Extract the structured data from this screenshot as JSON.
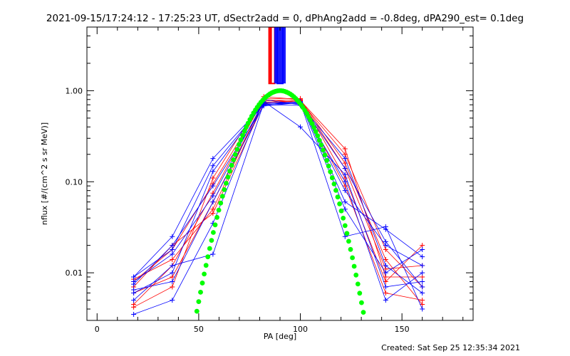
{
  "created": "Created: Sat Sep 25 12:35:34 2021",
  "chart_data": {
    "type": "line",
    "title": "2021-09-15/17:24:12 - 17:25:23 UT, dSectr2add = 0, dPhAng2add = -0.8deg, dPA290_est=  0.1deg",
    "xlabel": "PA [deg]",
    "ylabel": "nflux [#/(cm^2 s sr MeV)]",
    "xlim": [
      -5,
      185
    ],
    "ylim": [
      0.003,
      5
    ],
    "yscale": "log",
    "xticks": [
      0,
      50,
      100,
      150
    ],
    "xtick_labels": [
      "0",
      "50",
      "100",
      "150"
    ],
    "yticks": [
      0.01,
      0.1,
      1.0
    ],
    "ytick_labels": [
      "0.01",
      "0.10",
      "1.00"
    ],
    "grid": false,
    "colors": {
      "red": "#ff0000",
      "blue": "#0000ff",
      "green": "#00ff00",
      "black": "#000000"
    },
    "series": [
      {
        "color": "red",
        "x": [
          18,
          37,
          57,
          82,
          100,
          122,
          142,
          160
        ],
        "y": [
          0.0045,
          0.012,
          0.075,
          0.82,
          0.82,
          0.11,
          0.008,
          0.02
        ]
      },
      {
        "color": "red",
        "x": [
          18,
          37,
          57,
          82,
          100,
          122,
          142,
          160
        ],
        "y": [
          0.008,
          0.018,
          0.095,
          0.78,
          0.79,
          0.14,
          0.011,
          0.012
        ]
      },
      {
        "color": "red",
        "x": [
          18,
          37,
          57,
          82,
          100,
          122,
          142,
          160
        ],
        "y": [
          0.006,
          0.009,
          0.06,
          0.75,
          0.77,
          0.2,
          0.018,
          0.007
        ]
      },
      {
        "color": "red",
        "x": [
          18,
          37,
          57,
          82,
          100,
          122,
          142,
          160
        ],
        "y": [
          0.0085,
          0.014,
          0.05,
          0.8,
          0.74,
          0.09,
          0.006,
          0.005
        ]
      },
      {
        "color": "red",
        "x": [
          18,
          37,
          57,
          82,
          100,
          122,
          142,
          160
        ],
        "y": [
          0.0042,
          0.007,
          0.11,
          0.86,
          0.8,
          0.16,
          0.014,
          0.0045
        ]
      },
      {
        "color": "red",
        "x": [
          18,
          37,
          57,
          82,
          100,
          122,
          142,
          160
        ],
        "y": [
          0.007,
          0.02,
          0.045,
          0.72,
          0.78,
          0.23,
          0.009,
          0.009
        ]
      },
      {
        "color": "blue",
        "x": [
          18,
          37,
          57,
          82,
          100,
          122,
          142,
          160
        ],
        "y": [
          0.009,
          0.025,
          0.18,
          0.7,
          0.76,
          0.06,
          0.03,
          0.015
        ]
      },
      {
        "color": "blue",
        "x": [
          18,
          37,
          57,
          82,
          100,
          122,
          142,
          160
        ],
        "y": [
          0.006,
          0.01,
          0.13,
          0.74,
          0.72,
          0.08,
          0.02,
          0.012
        ]
      },
      {
        "color": "blue",
        "x": [
          18,
          37,
          57,
          82,
          100,
          122,
          142,
          160
        ],
        "y": [
          0.008,
          0.016,
          0.07,
          0.76,
          0.4,
          0.12,
          0.007,
          0.008
        ]
      },
      {
        "color": "blue",
        "x": [
          18,
          37,
          57,
          82,
          100,
          122,
          142,
          160
        ],
        "y": [
          0.0035,
          0.005,
          0.035,
          0.8,
          0.7,
          0.18,
          0.012,
          0.006
        ]
      },
      {
        "color": "blue",
        "x": [
          18,
          37,
          57,
          82,
          100,
          122,
          142,
          160
        ],
        "y": [
          0.005,
          0.012,
          0.016,
          0.73,
          0.75,
          0.025,
          0.032,
          0.004
        ]
      },
      {
        "color": "blue",
        "x": [
          18,
          37,
          57,
          82,
          100,
          122,
          142,
          160
        ],
        "y": [
          0.0075,
          0.02,
          0.09,
          0.68,
          0.74,
          0.05,
          0.01,
          0.018
        ]
      },
      {
        "color": "blue",
        "x": [
          18,
          37,
          57,
          82,
          100,
          122,
          142,
          160
        ],
        "y": [
          0.0065,
          0.008,
          0.06,
          0.7,
          0.69,
          0.1,
          0.005,
          0.01
        ]
      },
      {
        "color": "blue",
        "x": [
          18,
          37,
          57,
          82,
          100,
          122,
          142,
          160
        ],
        "y": [
          0.009,
          0.018,
          0.15,
          0.71,
          0.73,
          0.14,
          0.022,
          0.007
        ]
      }
    ],
    "fit_green": {
      "color": "green",
      "x_range": [
        32,
        136
      ],
      "peak_x": 90,
      "peak_y": 1.0
    },
    "fit_black": {
      "color": "black",
      "x_range": [
        32,
        52
      ],
      "peak_x": 90,
      "peak_y": 1.0
    },
    "vertical_bars": [
      {
        "color": "red",
        "x": 86,
        "y_from": 1.2,
        "y_to": 5
      },
      {
        "color": "blue",
        "x": 90,
        "y_from": 1.2,
        "y_to": 5
      }
    ]
  }
}
